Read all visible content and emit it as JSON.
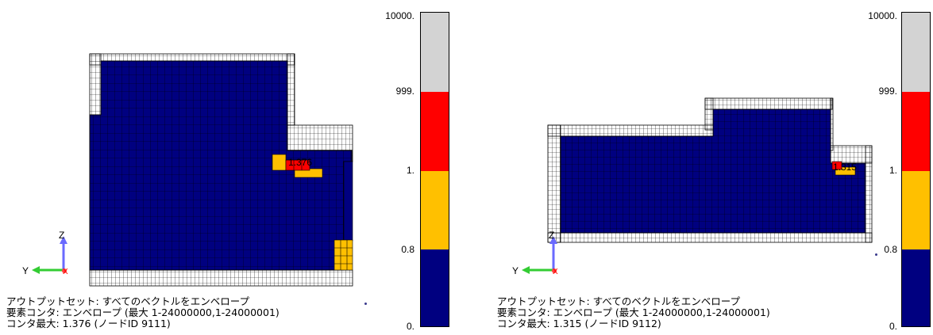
{
  "colors": {
    "blue": "#000080",
    "red": "#ff0000",
    "orange": "#ffc000",
    "gray": "#d3d3d3",
    "mesh": "#000000",
    "axis_z": "#6a6aff",
    "axis_y": "#33cc33"
  },
  "legend_ticks": [
    "10000.",
    "999.",
    "1.",
    "0.8",
    "0."
  ],
  "panels": [
    {
      "max_label": "1.376",
      "axis": {
        "z": "Z",
        "y": "Y",
        "x": "X"
      },
      "caption": [
        "アウトプットセット: すべてのベクトルをエンベロープ",
        "要素コンタ: エンベロープ (最大 1-24000000,1-24000001)",
        "コンタ最大: 1.376 (ノードID 9111)"
      ]
    },
    {
      "max_label": "1.315",
      "axis": {
        "z": "Z",
        "y": "Y",
        "x": "X"
      },
      "caption": [
        "アウトプットセット: すべてのベクトルをエンベロープ",
        "要素コンタ: エンベロープ (最大 1-24000000,1-24000001)",
        "コンタ最大: 1.315 (ノードID 9112)"
      ]
    }
  ]
}
